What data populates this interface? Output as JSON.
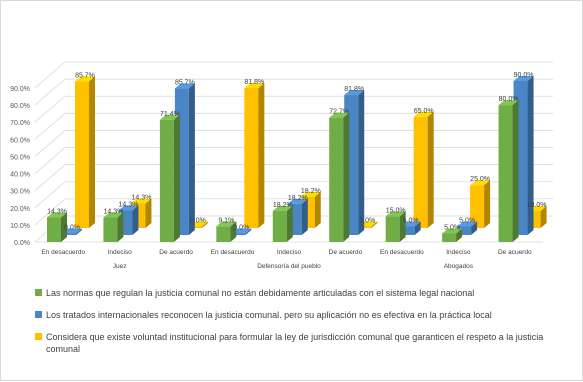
{
  "chart_data": {
    "type": "bar",
    "title": "",
    "xlabel": "",
    "ylabel": "",
    "ylim": [
      0,
      90
    ],
    "yticks": [
      0,
      10,
      20,
      30,
      40,
      50,
      60,
      70,
      80,
      90
    ],
    "ytick_labels": [
      "0.0%",
      "10.0%",
      "20.0%",
      "30.0%",
      "40.0%",
      "50.0%",
      "60.0%",
      "70.0%",
      "80.0%",
      "90.0%"
    ],
    "grid": true,
    "legend_position": "bottom",
    "categories": [
      "En desacuerdo",
      "Indeciso",
      "De acuerdo",
      "En desacuerdo",
      "Indeciso",
      "De acuerdo",
      "En desacuerdo",
      "Indeciso",
      "De acuerdo"
    ],
    "groups": [
      {
        "label": "Juez",
        "span": [
          0,
          2
        ]
      },
      {
        "label": "Defensoría del pueblo",
        "span": [
          3,
          5
        ]
      },
      {
        "label": "Abogados",
        "span": [
          6,
          8
        ]
      }
    ],
    "series": [
      {
        "name": "Las normas que regulan la justicia comunal no están debidamente articuladas con el sistema legal nacional",
        "color": "#70ad47",
        "values": [
          14.3,
          14.3,
          71.4,
          9.1,
          18.2,
          72.7,
          15.0,
          5.0,
          80.0
        ],
        "labels": [
          "14.3%",
          "14.3%",
          "71.4%",
          "9.1%",
          "18.2%",
          "72.7%",
          "15.0%",
          "5.0%",
          "80.0%"
        ]
      },
      {
        "name": "Los tratados internacionales reconocen la justicia comunal. pero su aplicación no es efectiva en la práctica local",
        "color": "#4a86c5",
        "values": [
          0.0,
          14.3,
          85.7,
          0.0,
          18.2,
          81.8,
          5.0,
          5.0,
          90.0
        ],
        "labels": [
          "0.0%",
          "14.3%",
          "85.7%",
          "0.0%",
          "18.2%",
          "81.8%",
          "5.0%",
          "5.0%",
          "90.0%"
        ]
      },
      {
        "name": "Considera que existe voluntad institucional para formular la ley de jurisdicción comunal que garanticen el respeto a la justicia comunal",
        "color": "#ffc000",
        "values": [
          85.7,
          14.3,
          0.0,
          81.8,
          18.2,
          0.0,
          65.0,
          25.0,
          10.0
        ],
        "labels": [
          "85.7%",
          "14.3%",
          "0.0%",
          "81.8%",
          "18.2%",
          "0.0%",
          "65.0%",
          "25.0%",
          "10.0%"
        ]
      }
    ]
  }
}
